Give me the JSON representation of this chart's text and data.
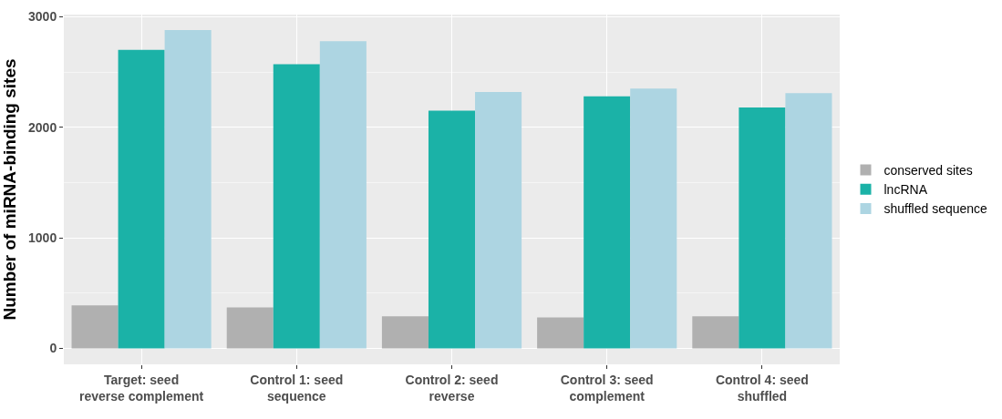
{
  "chart_data": {
    "type": "bar",
    "ylabel": "Number of miRNA-binding sites",
    "categories": [
      "Target: seed\nreverse complement",
      "Control 1: seed\nsequence",
      "Control 2: seed\nreverse",
      "Control 3: seed\ncomplement",
      "Control 4: seed\nshuffled"
    ],
    "series": [
      {
        "name": "conserved sites",
        "color": "#b0b0b0",
        "values": [
          390,
          370,
          290,
          280,
          290
        ]
      },
      {
        "name": "lncRNA",
        "color": "#1bb2a7",
        "values": [
          2700,
          2570,
          2150,
          2280,
          2180
        ]
      },
      {
        "name": "shuffled sequence",
        "color": "#add5e2",
        "values": [
          2880,
          2780,
          2320,
          2350,
          2310
        ]
      }
    ],
    "ylim": [
      -144,
      3020
    ],
    "yticks": [
      0,
      1000,
      2000,
      3000
    ],
    "grid": true,
    "legend": "right"
  }
}
